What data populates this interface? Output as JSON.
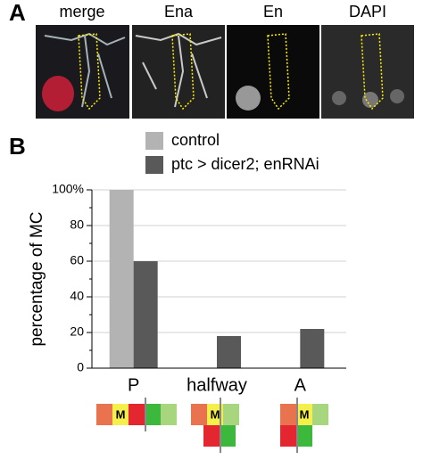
{
  "panel_a": {
    "label": "A",
    "titles": [
      "merge",
      "Ena",
      "En",
      "DAPI"
    ]
  },
  "chart_data": {
    "type": "bar",
    "label": "B",
    "y_label": "percentage of MC",
    "categories": [
      "P",
      "halfway",
      "A"
    ],
    "series": [
      {
        "name": "control",
        "color": "#b3b3b3",
        "values": [
          100,
          0,
          0
        ]
      },
      {
        "name": "ptc > dicer2; enRNAi",
        "color": "#595959",
        "values": [
          60,
          18,
          22
        ]
      }
    ],
    "ylim": [
      0,
      100
    ],
    "yticks": [
      0,
      20,
      40,
      60,
      80,
      {
        "value": 100,
        "label": "100%"
      }
    ],
    "yminorticks": [
      10,
      30,
      50,
      70,
      90
    ],
    "grid": true
  },
  "schematic_labels": [
    "M",
    "M",
    "M"
  ]
}
